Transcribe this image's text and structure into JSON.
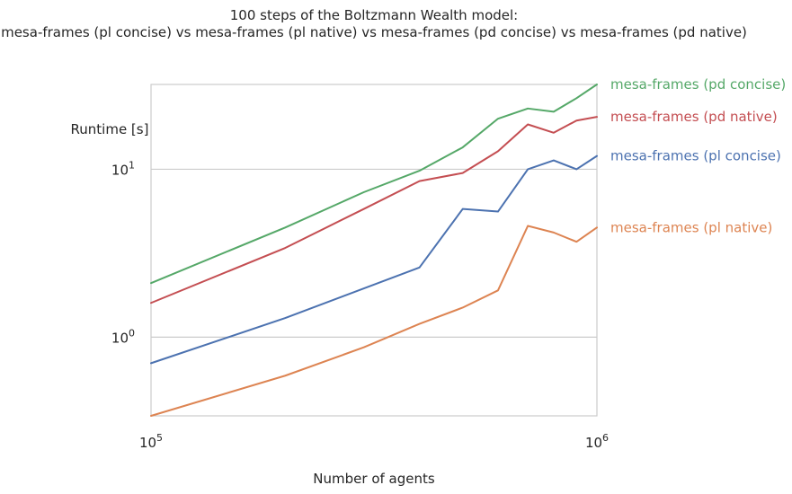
{
  "chart_data": {
    "type": "line",
    "title_lines": [
      "100 steps of the Boltzmann Wealth model:",
      "mesa-frames (pl concise) vs mesa-frames (pl native) vs mesa-frames (pd concise) vs mesa-frames (pd native)"
    ],
    "xlabel": "Number of agents",
    "ylabel": "Runtime [s]",
    "x_scale": "log",
    "y_scale": "log",
    "xlim": [
      100000,
      1000000
    ],
    "ylim": [
      0.34,
      32
    ],
    "x_ticks": [
      {
        "value": 100000,
        "base": "10",
        "exp": "5"
      },
      {
        "value": 1000000,
        "base": "10",
        "exp": "6"
      }
    ],
    "y_ticks": [
      {
        "value": 1,
        "base": "10",
        "exp": "0"
      },
      {
        "value": 10,
        "base": "10",
        "exp": "1"
      }
    ],
    "grid": "horizontal",
    "legend": "labels at right end of each line",
    "series": [
      {
        "name": "mesa-frames (pl concise)",
        "color": "#4c72b0",
        "x": [
          100000,
          200000,
          400000,
          500000,
          600000,
          700000,
          800000,
          900000,
          1000000
        ],
        "y": [
          0.7,
          1.3,
          2.6,
          5.8,
          5.6,
          10.0,
          11.3,
          10.0,
          12.0
        ]
      },
      {
        "name": "mesa-frames (pl native)",
        "color": "#dd8452",
        "x": [
          100000,
          200000,
          300000,
          400000,
          500000,
          600000,
          700000,
          800000,
          900000,
          1000000
        ],
        "y": [
          0.34,
          0.59,
          0.87,
          1.2,
          1.5,
          1.9,
          4.6,
          4.2,
          3.7,
          4.5
        ]
      },
      {
        "name": "mesa-frames (pd concise)",
        "color": "#55a868",
        "x": [
          100000,
          200000,
          300000,
          400000,
          500000,
          600000,
          700000,
          800000,
          900000,
          1000000
        ],
        "y": [
          2.1,
          4.5,
          7.3,
          9.8,
          13.5,
          20.0,
          23.0,
          22.0,
          26.5,
          32.0
        ]
      },
      {
        "name": "mesa-frames (pd native)",
        "color": "#c44e52",
        "x": [
          100000,
          200000,
          300000,
          400000,
          500000,
          600000,
          700000,
          800000,
          900000,
          1000000
        ],
        "y": [
          1.6,
          3.4,
          5.8,
          8.5,
          9.5,
          12.8,
          18.5,
          16.5,
          19.5,
          20.5
        ]
      }
    ]
  }
}
